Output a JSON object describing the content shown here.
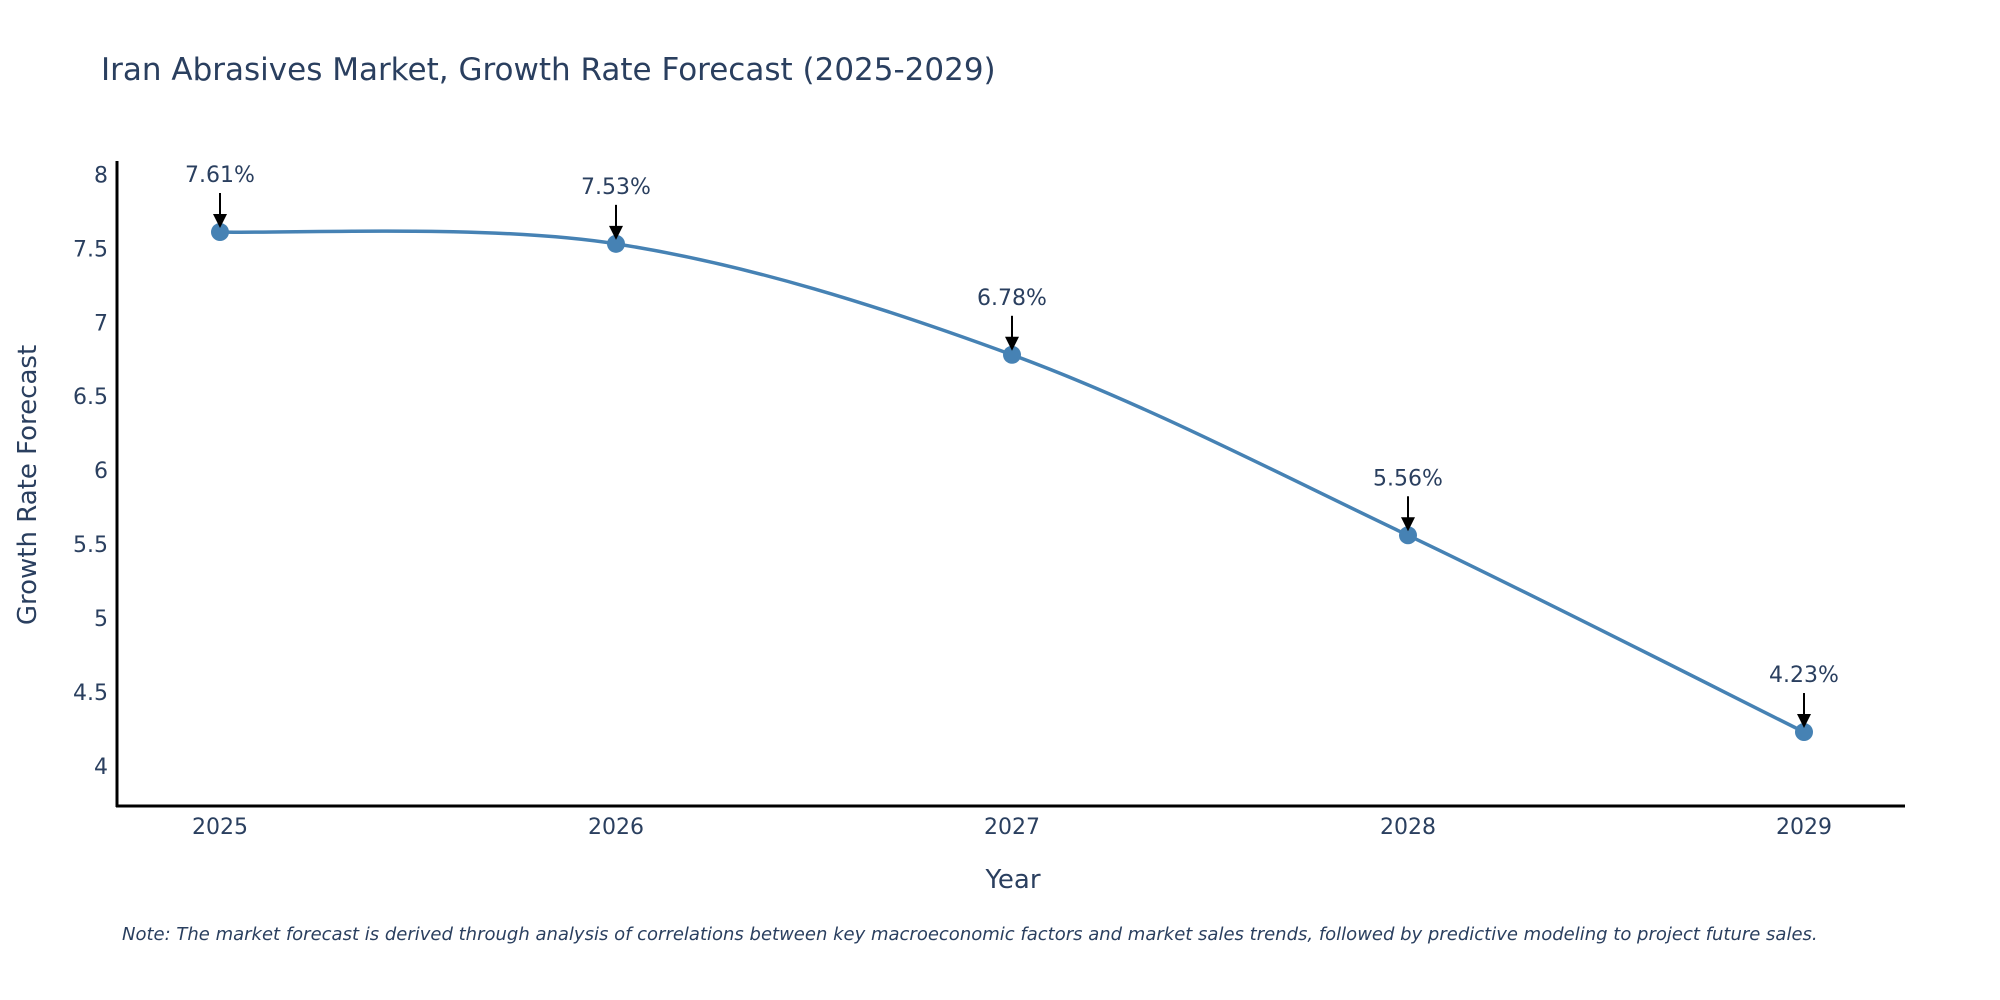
{
  "chart_data": {
    "type": "line",
    "title": "Iran Abrasives Market, Growth Rate Forecast (2025-2029)",
    "xlabel": "Year",
    "ylabel": "Growth Rate Forecast",
    "categories": [
      "2025",
      "2026",
      "2027",
      "2028",
      "2029"
    ],
    "series": [
      {
        "name": "Growth Rate Forecast",
        "values": [
          7.61,
          7.53,
          6.78,
          5.56,
          4.23
        ],
        "labels": [
          "7.61%",
          "7.53%",
          "6.78%",
          "5.56%",
          "4.23%"
        ],
        "color": "#4682b4"
      }
    ],
    "yticks": [
      4,
      4.5,
      5,
      5.5,
      6,
      6.5,
      7,
      7.5,
      8
    ],
    "ytick_labels": [
      "4",
      "4.5",
      "5",
      "5.5",
      "6",
      "6.5",
      "7",
      "7.5",
      "8"
    ],
    "ylim": [
      3.73,
      8.09
    ],
    "grid": false,
    "note": "Note: The market forecast is derived through analysis of correlations between key macroeconomic factors and market sales trends, followed by predictive modeling to project future sales."
  }
}
